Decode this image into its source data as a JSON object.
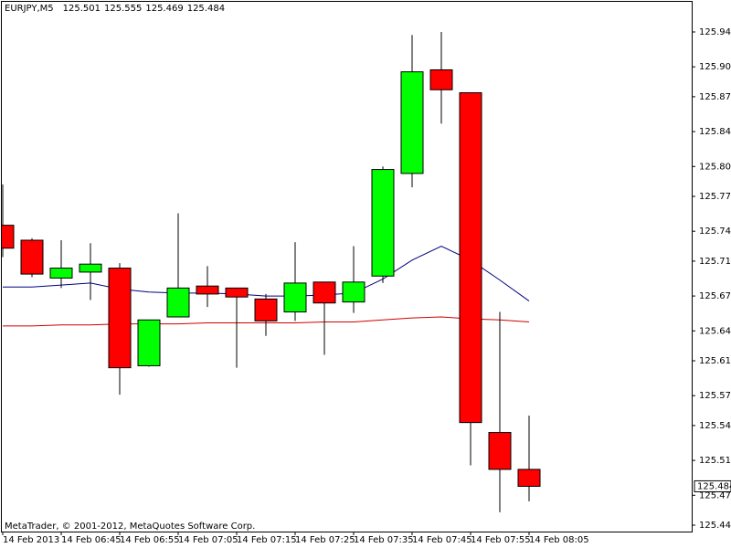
{
  "chart_data": {
    "type": "candlestick",
    "title": "EURJPY,M5",
    "footer": "MetaTrader, © 2001-2012, MetaQuotes Software Corp.",
    "categories": [
      "14 Feb 2013",
      null,
      "14 Feb 06:45",
      null,
      "14 Feb 06:55",
      null,
      "14 Feb 07:05",
      null,
      "14 Feb 07:15",
      null,
      "14 Feb 07:25",
      null,
      "14 Feb 07:35",
      null,
      "14 Feb 07:45",
      null,
      "14 Feb 07:55",
      null,
      "14 Feb 08:05"
    ],
    "open": [
      125.746,
      125.731,
      125.693,
      125.699,
      125.703,
      125.605,
      125.654,
      125.685,
      125.683,
      125.672,
      125.659,
      125.689,
      125.669,
      125.695,
      125.798,
      125.902,
      125.879,
      125.538,
      125.501
    ],
    "high": [
      125.787,
      125.733,
      125.731,
      125.728,
      125.708,
      125.651,
      125.758,
      125.705,
      125.683,
      125.677,
      125.729,
      125.689,
      125.725,
      125.805,
      125.937,
      125.94,
      125.879,
      125.659,
      125.555
    ],
    "low": [
      125.714,
      125.694,
      125.683,
      125.671,
      125.576,
      125.604,
      125.654,
      125.664,
      125.603,
      125.635,
      125.65,
      125.616,
      125.658,
      125.688,
      125.784,
      125.848,
      125.505,
      125.458,
      125.469
    ],
    "close": [
      125.723,
      125.697,
      125.703,
      125.707,
      125.603,
      125.651,
      125.683,
      125.677,
      125.674,
      125.65,
      125.688,
      125.668,
      125.689,
      125.802,
      125.9,
      125.882,
      125.548,
      125.501,
      125.484
    ],
    "up_color": "#00ff00",
    "down_color": "#ff0000",
    "lines": [
      {
        "color": "#000080",
        "values": [
          125.684,
          125.684,
          125.686,
          125.688,
          125.682,
          125.679,
          125.678,
          125.678,
          125.677,
          125.675,
          125.675,
          125.676,
          125.678,
          125.692,
          125.711,
          125.725,
          125.711,
          125.691,
          125.67
        ]
      },
      {
        "color": "#d00000",
        "values": [
          125.645,
          125.645,
          125.646,
          125.646,
          125.647,
          125.647,
          125.647,
          125.648,
          125.648,
          125.648,
          125.648,
          125.649,
          125.649,
          125.651,
          125.653,
          125.654,
          125.652,
          125.651,
          125.649
        ]
      }
    ],
    "ylim": [
      125.4425,
      125.9465
    ],
    "yticks": [
      {
        "value": 125.94,
        "label": "125.940"
      },
      {
        "value": 125.905,
        "label": "125.905"
      },
      {
        "value": 125.875,
        "label": "125.875"
      },
      {
        "value": 125.84,
        "label": "125.840"
      },
      {
        "value": 125.805,
        "label": "125.805"
      },
      {
        "value": 125.775,
        "label": "125.775"
      },
      {
        "value": 125.74,
        "label": "125.740"
      },
      {
        "value": 125.71,
        "label": "125.710"
      },
      {
        "value": 125.675,
        "label": "125.675"
      },
      {
        "value": 125.64,
        "label": "125.640"
      },
      {
        "value": 125.61,
        "label": "125.610"
      },
      {
        "value": 125.575,
        "label": "125.575"
      },
      {
        "value": 125.545,
        "label": "125.545"
      },
      {
        "value": 125.51,
        "label": "125.510"
      },
      {
        "value": 125.475,
        "label": "125.475"
      },
      {
        "value": 125.445,
        "label": "125.445"
      }
    ]
  }
}
